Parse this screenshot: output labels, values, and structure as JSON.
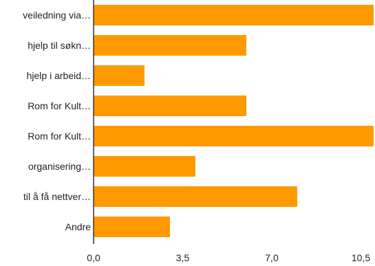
{
  "chart_data": {
    "type": "bar",
    "orientation": "horizontal",
    "categories": [
      "veiledning via…",
      "hjelp til søkn…",
      "hjelp i arbeid…",
      "Rom for Kult…",
      "Rom for Kult…",
      "organisering…",
      "til å få nettver…",
      "Andre"
    ],
    "values": [
      11,
      6,
      2,
      6,
      11,
      4,
      8,
      3
    ],
    "xlim": [
      0,
      11
    ],
    "xticks": [
      0,
      3.5,
      7,
      10.5
    ],
    "xtick_labels": [
      "0,0",
      "3,5",
      "7,0",
      "10,5"
    ],
    "title": "",
    "xlabel": "",
    "ylabel": "",
    "grid": false,
    "bar_color": "#ff9900",
    "axis_color": "#333333"
  }
}
